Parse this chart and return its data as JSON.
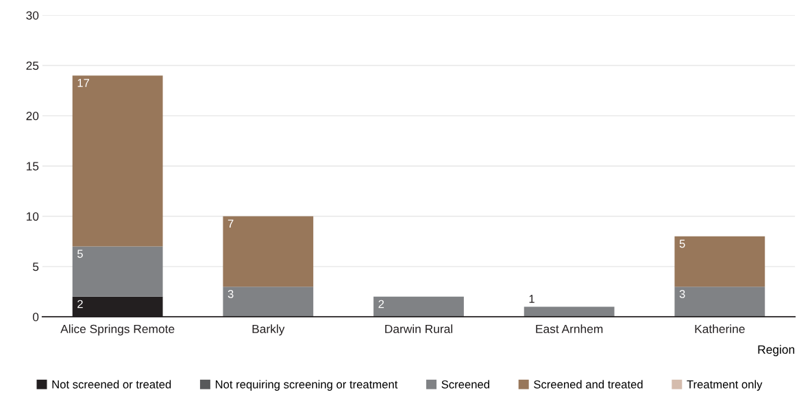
{
  "chart_data": {
    "type": "bar",
    "stacked": true,
    "xlabel": "Region",
    "categories": [
      "Alice Springs Remote",
      "Barkly",
      "Darwin Rural",
      "East Arnhem",
      "Katherine"
    ],
    "series": [
      {
        "name": "Not screened or treated",
        "color": "#231f20",
        "values": [
          2,
          0,
          0,
          0,
          0
        ],
        "value_labels": [
          "2",
          null,
          null,
          null,
          null
        ]
      },
      {
        "name": "Not requiring screening or treatment",
        "color": "#58595b",
        "values": [
          0,
          0,
          0,
          0,
          0
        ],
        "value_labels": [
          null,
          null,
          null,
          null,
          null
        ]
      },
      {
        "name": "Screened",
        "color": "#808285",
        "values": [
          5,
          3,
          2,
          1,
          3
        ],
        "value_labels": [
          "5",
          "3",
          "2",
          "1",
          "3"
        ]
      },
      {
        "name": "Screened and treated",
        "color": "#98775a",
        "values": [
          17,
          7,
          0,
          0,
          5
        ],
        "value_labels": [
          "17",
          "7",
          null,
          null,
          "5"
        ]
      },
      {
        "name": "Treatment only",
        "color": "#d5bcad",
        "values": [
          0,
          0,
          0,
          0,
          0
        ],
        "value_labels": [
          null,
          null,
          null,
          null,
          null
        ]
      }
    ],
    "ylim": [
      0,
      30
    ],
    "yticks": [
      0,
      5,
      10,
      15,
      20,
      25,
      30
    ],
    "grid": "y",
    "legend": "bottom"
  }
}
